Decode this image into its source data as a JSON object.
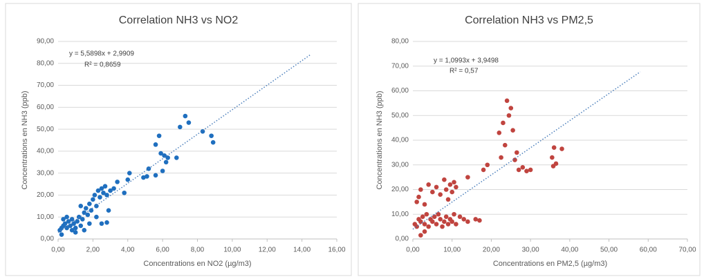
{
  "chart_data": [
    {
      "type": "scatter",
      "title": "Correlation NH3 vs NO2",
      "x_label": "Concentrations en NO2 (µg/m3)",
      "y_label": "Concentrations en NH3 (ppb)",
      "annotations": [
        "y = 5,5898x + 2,9909",
        "R² = 0,8659"
      ],
      "color": "#1f6fbf",
      "x": [
        0.1,
        0.2,
        0.3,
        0.2,
        0.4,
        0.5,
        0.6,
        0.7,
        0.8,
        0.9,
        1.0,
        1.1,
        1.2,
        1.3,
        1.4,
        1.5,
        1.6,
        1.7,
        1.8,
        1.9,
        2.0,
        2.1,
        2.2,
        2.3,
        2.4,
        2.5,
        2.6,
        2.7,
        2.8,
        3.0,
        3.2,
        3.4,
        2.5,
        2.8,
        1.5,
        1.0,
        3.8,
        4.0,
        4.1,
        4.9,
        5.2,
        5.1,
        5.6,
        5.8,
        5.6,
        5.9,
        6.0,
        6.1,
        6.2,
        6.3,
        6.8,
        7.0,
        7.3,
        7.5,
        8.3,
        8.8,
        8.9,
        0.5,
        1.3,
        2.9,
        0.8,
        1.8,
        2.2,
        0.3
      ],
      "y": [
        4,
        5,
        6,
        2,
        7,
        5,
        8,
        6,
        9,
        7,
        5,
        8,
        10,
        6,
        9,
        12,
        14,
        11,
        16,
        13,
        18,
        20,
        15,
        22,
        19,
        23,
        21,
        24,
        20,
        22,
        23,
        26,
        7,
        7.5,
        4,
        3,
        21,
        27,
        30,
        28,
        32,
        28.5,
        43,
        47,
        29,
        39,
        31,
        38,
        35,
        37,
        37,
        51,
        56,
        53,
        49,
        47,
        44,
        10,
        15,
        13,
        4,
        7,
        10,
        9
      ],
      "trendline": {
        "x": [
          0,
          14.5
        ],
        "y": [
          2.99,
          84.04
        ]
      },
      "xlim": [
        0,
        16
      ],
      "xticks": [
        {
          "value": 0,
          "label": "0,00"
        },
        {
          "value": 2,
          "label": "2,00"
        },
        {
          "value": 4,
          "label": "4,00"
        },
        {
          "value": 6,
          "label": "6,00"
        },
        {
          "value": 8,
          "label": "8,00"
        },
        {
          "value": 10,
          "label": "10,00"
        },
        {
          "value": 12,
          "label": "12,00"
        },
        {
          "value": 14,
          "label": "14,00"
        },
        {
          "value": 16,
          "label": "16,00"
        }
      ],
      "ylim": [
        0,
        90
      ],
      "yticks": [
        {
          "value": 0,
          "label": "0,00"
        },
        {
          "value": 10,
          "label": "10,00"
        },
        {
          "value": 20,
          "label": "20,00"
        },
        {
          "value": 30,
          "label": "30,00"
        },
        {
          "value": 40,
          "label": "40,00"
        },
        {
          "value": 50,
          "label": "50,00"
        },
        {
          "value": 60,
          "label": "60,00"
        },
        {
          "value": 70,
          "label": "70,00"
        },
        {
          "value": 80,
          "label": "80,00"
        },
        {
          "value": 90,
          "label": "90,00"
        }
      ],
      "grid": true
    },
    {
      "type": "scatter",
      "title": "Correlation NH3 vs PM2,5",
      "x_label": "Concentrations en PM2,5 (µg/m3)",
      "y_label": "Concentrations en NH3 (ppb)",
      "annotations": [
        "y = 1,0993x + 3,9498",
        "R² = 0,57"
      ],
      "color": "#c0443f",
      "x": [
        0.5,
        1,
        1.5,
        2,
        2.5,
        3,
        3.5,
        4,
        4.5,
        5,
        5.5,
        6,
        6.5,
        7,
        7.5,
        8,
        8.5,
        9,
        9.5,
        10,
        10.5,
        11,
        12,
        13,
        14,
        16,
        17,
        1,
        1.5,
        2,
        3,
        4,
        5,
        6,
        7,
        8,
        8.5,
        9,
        9.5,
        10,
        10.5,
        11,
        3,
        2,
        14,
        18,
        19,
        22,
        23,
        23.5,
        24,
        24.5,
        25,
        25.5,
        26,
        26.5,
        27,
        28,
        29,
        30,
        35.5,
        35.8,
        36,
        36.5,
        38,
        22.5
      ],
      "y": [
        6,
        5,
        8,
        7,
        9,
        6,
        10,
        5,
        8,
        7,
        9,
        6,
        10,
        8,
        5,
        7,
        9,
        6,
        8,
        7,
        10,
        6,
        9,
        8,
        7,
        8,
        7.5,
        15,
        17,
        20,
        14,
        22,
        19,
        21,
        18,
        24,
        20,
        16,
        22,
        19,
        23,
        21,
        3,
        1.5,
        25,
        28,
        30,
        43,
        47,
        38,
        56,
        50,
        53,
        44,
        32,
        35,
        28,
        29,
        27.5,
        28,
        33,
        29.5,
        37,
        30.5,
        36.5,
        33
      ],
      "trendline": {
        "x": [
          0,
          58
        ],
        "y": [
          3.95,
          67.71
        ]
      },
      "xlim": [
        0,
        70
      ],
      "xticks": [
        {
          "value": 0,
          "label": "0,00"
        },
        {
          "value": 10,
          "label": "10,00"
        },
        {
          "value": 20,
          "label": "20,00"
        },
        {
          "value": 30,
          "label": "30,00"
        },
        {
          "value": 40,
          "label": "40,00"
        },
        {
          "value": 50,
          "label": "50,00"
        },
        {
          "value": 60,
          "label": "60,00"
        },
        {
          "value": 70,
          "label": "70,00"
        }
      ],
      "ylim": [
        0,
        80
      ],
      "yticks": [
        {
          "value": 0,
          "label": "0,00"
        },
        {
          "value": 10,
          "label": "10,00"
        },
        {
          "value": 20,
          "label": "20,00"
        },
        {
          "value": 30,
          "label": "30,00"
        },
        {
          "value": 40,
          "label": "40,00"
        },
        {
          "value": 50,
          "label": "50,00"
        },
        {
          "value": 60,
          "label": "60,00"
        },
        {
          "value": 70,
          "label": "70,00"
        },
        {
          "value": 80,
          "label": "80,00"
        }
      ],
      "grid": true
    }
  ]
}
